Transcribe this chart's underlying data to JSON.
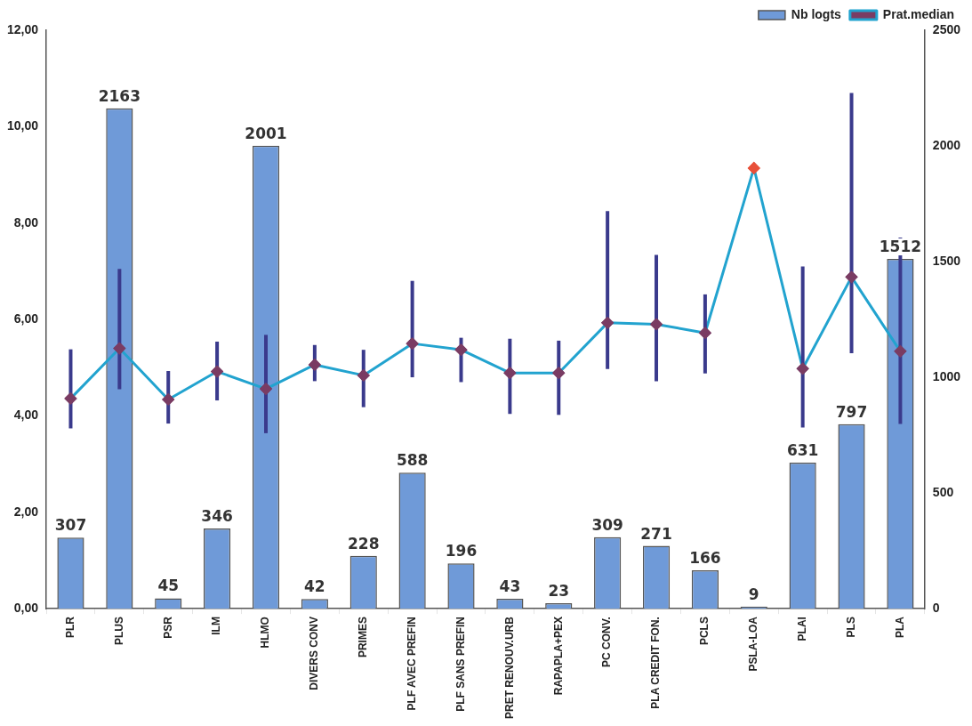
{
  "chart_data": {
    "type": "bar",
    "categories": [
      "PLR",
      "PLUS",
      "PSR",
      "ILM",
      "HLMO",
      "DIVERS CONV",
      "PRIMES",
      "PLF AVEC PREFIN",
      "PLF SANS PREFIN",
      "PRET RENOUV.URB",
      "RAPAPLA+PEX",
      "PC CONV.",
      "PLA CREDIT FON.",
      "PCLS",
      "PSLA-LOA",
      "PLAI",
      "PLS",
      "PLA"
    ],
    "series": [
      {
        "name": "Nb logts",
        "axis": "y2",
        "color": "#6f9ad8",
        "values": [
          307,
          2163,
          45,
          346,
          2001,
          42,
          228,
          588,
          196,
          43,
          23,
          309,
          271,
          166,
          9,
          631,
          797,
          1512
        ],
        "value_labels": [
          "307",
          "2163",
          "45",
          "346",
          "2001",
          "42",
          "228",
          "588",
          "196",
          "43",
          "23",
          "309",
          "271",
          "166",
          "9",
          "631",
          "797",
          "1512"
        ]
      },
      {
        "name": "Prat.median",
        "type": "line",
        "color": "#22a3cf",
        "marker": "diamond",
        "colors": [
          "#7a3c63",
          "#7a3c63",
          "#7a3c63",
          "#7a3c63",
          "#7a3c63",
          "#7a3c63",
          "#7a3c63",
          "#7a3c63",
          "#7a3c63",
          "#7a3c63",
          "#7a3c63",
          "#7a3c63",
          "#7a3c63",
          "#7a3c63",
          "#e8503a",
          "#7a3c63",
          "#7a3c63",
          "#7a3c63"
        ],
        "values": [
          4.36,
          5.4,
          4.34,
          4.92,
          4.56,
          5.06,
          4.84,
          5.5,
          5.37,
          4.89,
          4.89,
          5.93,
          5.9,
          5.72,
          9.14,
          4.98,
          6.88,
          5.34
        ],
        "errors": [
          [
            3.74,
            5.38
          ],
          [
            4.55,
            7.05
          ],
          [
            3.84,
            4.93
          ],
          [
            4.32,
            5.54
          ],
          [
            3.64,
            5.68
          ],
          [
            4.72,
            5.47
          ],
          [
            4.18,
            5.37
          ],
          [
            4.8,
            6.8
          ],
          [
            4.7,
            5.62
          ],
          [
            4.04,
            5.6
          ],
          [
            4.02,
            5.56
          ],
          [
            4.97,
            8.25
          ],
          [
            4.72,
            7.34
          ],
          [
            4.88,
            6.52
          ],
          null,
          [
            3.76,
            7.1
          ],
          [
            5.3,
            10.7
          ],
          [
            3.83,
            7.7
          ]
        ]
      }
    ],
    "ylim": [
      0,
      12
    ],
    "yticks": [
      {
        "value": 0,
        "label": "0,00"
      },
      {
        "value": 2,
        "label": "2,00"
      },
      {
        "value": 4,
        "label": "4,00"
      },
      {
        "value": 6,
        "label": "6,00"
      },
      {
        "value": 8,
        "label": "8,00"
      },
      {
        "value": 10,
        "label": "10,00"
      },
      {
        "value": 12,
        "label": "12,00"
      }
    ],
    "y2lim": [
      0,
      2500
    ],
    "y2ticks": [
      0,
      500,
      1000,
      1500,
      2000,
      2500
    ],
    "legend": "top right",
    "grid": false
  }
}
